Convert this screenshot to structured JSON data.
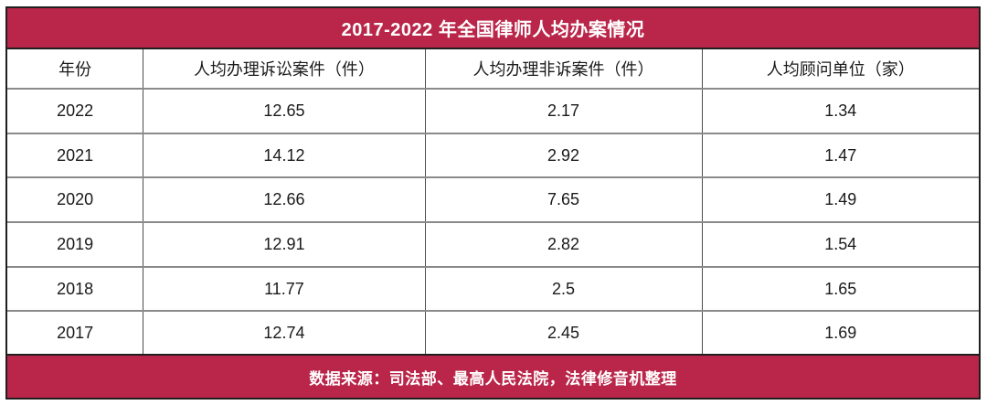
{
  "colors": {
    "accent": "#ba2649",
    "frame_line": "#1f1f1f",
    "grid_line": "#8a8a8a",
    "vertical_line": "#4d4d4d",
    "title_text": "#ffffff",
    "body_text": "#1a1a1a"
  },
  "title": "2017-2022 年全国律师人均办案情况",
  "footer": "数据来源：司法部、最高人民法院，法律修音机整理",
  "table": {
    "headers": [
      "年份",
      "人均办理诉讼案件（件）",
      "人均办理非诉案件（件）",
      "人均顾问单位（家）"
    ],
    "rows": [
      [
        "2022",
        "12.65",
        "2.17",
        "1.34"
      ],
      [
        "2021",
        "14.12",
        "2.92",
        "1.47"
      ],
      [
        "2020",
        "12.66",
        "7.65",
        "1.49"
      ],
      [
        "2019",
        "12.91",
        "2.82",
        "1.54"
      ],
      [
        "2018",
        "11.77",
        "2.5",
        "1.65"
      ],
      [
        "2017",
        "12.74",
        "2.45",
        "1.69"
      ]
    ]
  },
  "chart_data": {
    "type": "table",
    "title": "2017-2022 年全国律师人均办案情况",
    "columns": [
      "年份",
      "人均办理诉讼案件（件）",
      "人均办理非诉案件（件）",
      "人均顾问单位（家）"
    ],
    "categories": [
      "2022",
      "2021",
      "2020",
      "2019",
      "2018",
      "2017"
    ],
    "series": [
      {
        "name": "人均办理诉讼案件（件）",
        "values": [
          12.65,
          14.12,
          12.66,
          12.91,
          11.77,
          12.74
        ]
      },
      {
        "name": "人均办理非诉案件（件）",
        "values": [
          2.17,
          2.92,
          7.65,
          2.82,
          2.5,
          2.45
        ]
      },
      {
        "name": "人均顾问单位（家）",
        "values": [
          1.34,
          1.47,
          1.49,
          1.54,
          1.65,
          1.69
        ]
      }
    ],
    "source_note": "数据来源：司法部、最高人民法院，法律修音机整理"
  }
}
